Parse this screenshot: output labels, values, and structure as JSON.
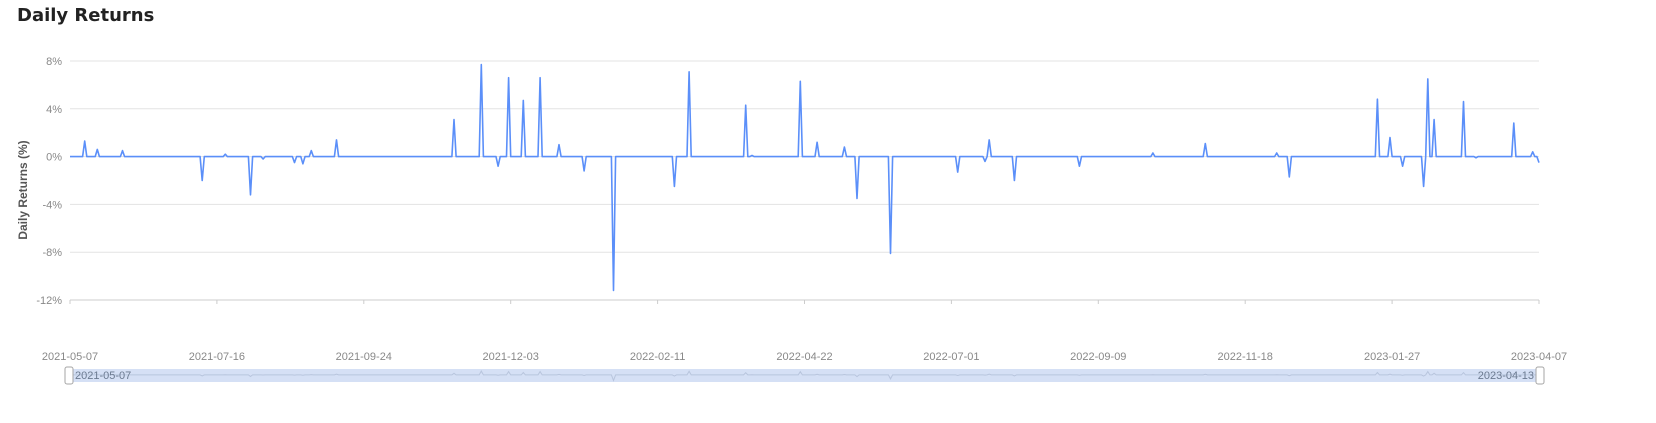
{
  "page_title": "Daily Returns",
  "colors": {
    "line": "#5b8ff9",
    "grid": "#e3e3e3",
    "zoom_fill": "#d5e0f5"
  },
  "chart_data": {
    "type": "line",
    "title": "Daily Returns",
    "xlabel": "",
    "ylabel": "Daily Returns (%)",
    "x_range": [
      "2021-05-07",
      "2023-04-07"
    ],
    "ylim": [
      -12,
      8
    ],
    "y_ticks": [
      8,
      4,
      0,
      -4,
      -8,
      -12
    ],
    "y_tick_labels": [
      "8%",
      "4%",
      "0%",
      "-4%",
      "-8%",
      "-12%"
    ],
    "x_tick_labels": [
      "2021-05-07",
      "2021-07-16",
      "2021-09-24",
      "2021-12-03",
      "2022-02-11",
      "2022-04-22",
      "2022-07-01",
      "2022-09-09",
      "2022-11-18",
      "2023-01-27",
      "2023-04-07"
    ],
    "grid": true,
    "series": [
      {
        "points": [
          [
            "2021-05-07",
            0
          ],
          [
            "2021-05-14",
            1.3
          ],
          [
            "2021-05-20",
            0.6
          ],
          [
            "2021-06-01",
            0.5
          ],
          [
            "2021-07-09",
            -2.0
          ],
          [
            "2021-07-20",
            0.2
          ],
          [
            "2021-08-01",
            -3.2
          ],
          [
            "2021-08-07",
            -0.2
          ],
          [
            "2021-08-22",
            -0.5
          ],
          [
            "2021-08-26",
            -0.6
          ],
          [
            "2021-08-30",
            0.5
          ],
          [
            "2021-09-11",
            1.4
          ],
          [
            "2021-11-06",
            3.1
          ],
          [
            "2021-11-19",
            7.7
          ],
          [
            "2021-11-27",
            -0.8
          ],
          [
            "2021-12-02",
            6.6
          ],
          [
            "2021-12-09",
            4.7
          ],
          [
            "2021-12-17",
            6.6
          ],
          [
            "2021-12-26",
            1.0
          ],
          [
            "2022-01-07",
            -1.2
          ],
          [
            "2022-01-21",
            -11.2
          ],
          [
            "2022-02-19",
            -2.5
          ],
          [
            "2022-02-26",
            7.1
          ],
          [
            "2022-03-25",
            4.3
          ],
          [
            "2022-03-28",
            0.1
          ],
          [
            "2022-04-20",
            6.3
          ],
          [
            "2022-04-28",
            1.2
          ],
          [
            "2022-05-11",
            0.8
          ],
          [
            "2022-05-17",
            -3.5
          ],
          [
            "2022-06-02",
            -8.1
          ],
          [
            "2022-07-04",
            -1.3
          ],
          [
            "2022-07-17",
            -0.4
          ],
          [
            "2022-07-19",
            1.4
          ],
          [
            "2022-07-31",
            -2.0
          ],
          [
            "2022-08-31",
            -0.8
          ],
          [
            "2022-10-05",
            0.3
          ],
          [
            "2022-10-30",
            1.1
          ],
          [
            "2022-12-03",
            0.3
          ],
          [
            "2022-12-09",
            -1.7
          ],
          [
            "2023-01-20",
            4.8
          ],
          [
            "2023-01-26",
            1.6
          ],
          [
            "2023-02-01",
            -0.8
          ],
          [
            "2023-02-11",
            -2.5
          ],
          [
            "2023-02-13",
            6.5
          ],
          [
            "2023-02-16",
            3.1
          ],
          [
            "2023-03-02",
            4.6
          ],
          [
            "2023-03-08",
            -0.1
          ],
          [
            "2023-03-26",
            2.8
          ],
          [
            "2023-04-04",
            0.4
          ],
          [
            "2023-04-07",
            -0.5
          ]
        ]
      }
    ]
  },
  "zoom_slider": {
    "start_label": "2021-05-07",
    "end_label": "2023-04-13"
  }
}
